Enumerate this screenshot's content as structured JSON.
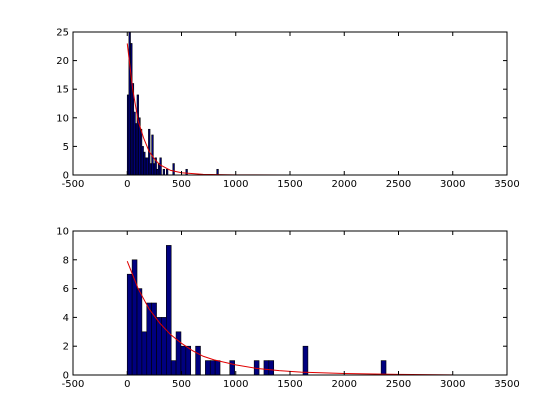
{
  "chart_data": [
    {
      "type": "bar",
      "xlim": [
        -500,
        3500
      ],
      "ylim": [
        0,
        25
      ],
      "xticks": [
        -500,
        0,
        500,
        1000,
        1500,
        2000,
        2500,
        3000,
        3500
      ],
      "yticks": [
        0,
        5,
        10,
        15,
        20,
        25
      ],
      "bin_width": 15,
      "bars": [
        {
          "x": 0,
          "y": 14
        },
        {
          "x": 15,
          "y": 25
        },
        {
          "x": 30,
          "y": 23
        },
        {
          "x": 45,
          "y": 16
        },
        {
          "x": 60,
          "y": 11
        },
        {
          "x": 75,
          "y": 9
        },
        {
          "x": 90,
          "y": 14
        },
        {
          "x": 105,
          "y": 10
        },
        {
          "x": 120,
          "y": 8
        },
        {
          "x": 135,
          "y": 5
        },
        {
          "x": 150,
          "y": 4
        },
        {
          "x": 165,
          "y": 3
        },
        {
          "x": 180,
          "y": 3
        },
        {
          "x": 195,
          "y": 8
        },
        {
          "x": 210,
          "y": 2
        },
        {
          "x": 225,
          "y": 7
        },
        {
          "x": 240,
          "y": 2
        },
        {
          "x": 255,
          "y": 3
        },
        {
          "x": 270,
          "y": 1
        },
        {
          "x": 285,
          "y": 2
        },
        {
          "x": 300,
          "y": 3
        },
        {
          "x": 330,
          "y": 1
        },
        {
          "x": 360,
          "y": 1
        },
        {
          "x": 420,
          "y": 2
        },
        {
          "x": 540,
          "y": 1
        },
        {
          "x": 825,
          "y": 1
        }
      ],
      "fit_curve": {
        "x": [
          0,
          50,
          100,
          150,
          200,
          250,
          300,
          400,
          500,
          700,
          1000,
          1500,
          2000,
          2500,
          3000
        ],
        "y": [
          23,
          15,
          9.5,
          6.5,
          4.2,
          2.8,
          1.8,
          0.8,
          0.4,
          0.1,
          0.02,
          0,
          0,
          0,
          0
        ]
      },
      "colors": {
        "bar_fill": "#00007f",
        "bar_edge": "#000000",
        "curve": "#e00000"
      }
    },
    {
      "type": "bar",
      "xlim": [
        -500,
        3500
      ],
      "ylim": [
        0,
        10
      ],
      "xticks": [
        -500,
        0,
        500,
        1000,
        1500,
        2000,
        2500,
        3000,
        3500
      ],
      "yticks": [
        0,
        2,
        4,
        6,
        8,
        10
      ],
      "bin_width": 45,
      "bars": [
        {
          "x": 0,
          "y": 7
        },
        {
          "x": 45,
          "y": 8
        },
        {
          "x": 90,
          "y": 6
        },
        {
          "x": 135,
          "y": 3
        },
        {
          "x": 180,
          "y": 5
        },
        {
          "x": 225,
          "y": 5
        },
        {
          "x": 270,
          "y": 4
        },
        {
          "x": 315,
          "y": 4
        },
        {
          "x": 360,
          "y": 9
        },
        {
          "x": 405,
          "y": 1
        },
        {
          "x": 450,
          "y": 3
        },
        {
          "x": 495,
          "y": 2
        },
        {
          "x": 540,
          "y": 2
        },
        {
          "x": 630,
          "y": 2
        },
        {
          "x": 720,
          "y": 1
        },
        {
          "x": 765,
          "y": 1
        },
        {
          "x": 810,
          "y": 1
        },
        {
          "x": 945,
          "y": 1
        },
        {
          "x": 1170,
          "y": 1
        },
        {
          "x": 1260,
          "y": 1
        },
        {
          "x": 1305,
          "y": 1
        },
        {
          "x": 1620,
          "y": 2
        },
        {
          "x": 2340,
          "y": 1
        }
      ],
      "fit_curve": {
        "x": [
          0,
          100,
          200,
          300,
          400,
          500,
          600,
          700,
          800,
          1000,
          1200,
          1400,
          1600,
          2000,
          2500,
          3000
        ],
        "y": [
          7.9,
          6.0,
          4.6,
          3.6,
          2.8,
          2.2,
          1.7,
          1.3,
          1.05,
          0.7,
          0.45,
          0.3,
          0.2,
          0.1,
          0.04,
          0.01
        ]
      },
      "colors": {
        "bar_fill": "#00007f",
        "bar_edge": "#000000",
        "curve": "#e00000"
      }
    }
  ]
}
